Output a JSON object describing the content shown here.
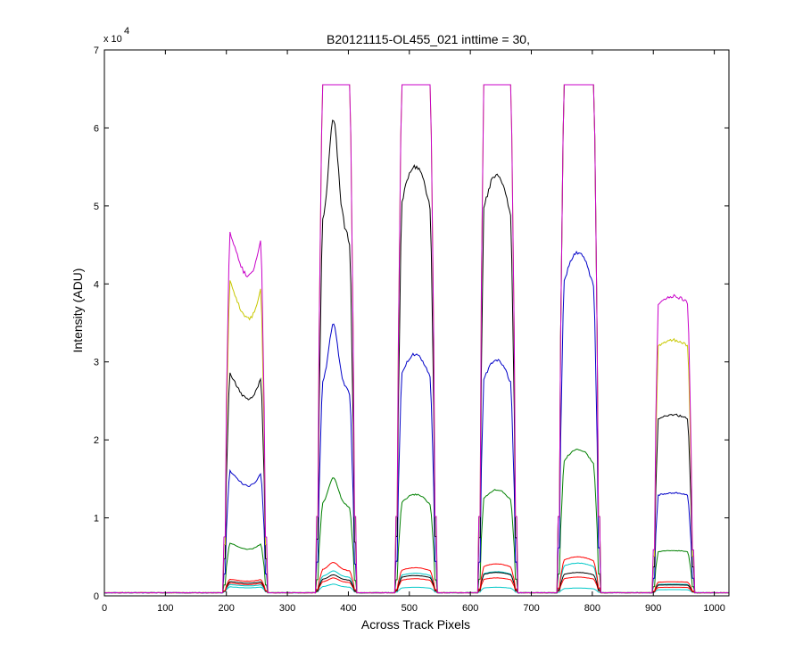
{
  "chart_data": {
    "type": "line",
    "title": "B20121115-OL455_021 inttime = 30,",
    "xlabel": "Across Track Pixels",
    "ylabel": "Intensity (ADU)",
    "y_exponent_base": "x 10",
    "y_exponent_power": "4",
    "xlim": [
      0,
      1024
    ],
    "ylim": [
      0,
      70000
    ],
    "xticks": [
      0,
      100,
      200,
      300,
      400,
      500,
      600,
      700,
      800,
      900,
      1000
    ],
    "yticks": [
      0,
      1,
      2,
      3,
      4,
      5,
      6,
      7
    ],
    "baseline": 400,
    "saturation": 65535,
    "peaks": [
      {
        "start": 200,
        "end": 262,
        "shape": "dip"
      },
      {
        "start": 352,
        "end": 408,
        "shape": "peak"
      },
      {
        "start": 482,
        "end": 540,
        "shape": "round"
      },
      {
        "start": 617,
        "end": 672,
        "shape": "round"
      },
      {
        "start": 748,
        "end": 808,
        "shape": "round"
      },
      {
        "start": 903,
        "end": 962,
        "shape": "flat"
      }
    ],
    "series": [
      {
        "color": "#00c8c8",
        "levels": [
          1200,
          1500,
          1100,
          1100,
          1000,
          800
        ]
      },
      {
        "color": "#00c8c8",
        "levels": [
          1500,
          3200,
          2900,
          3100,
          4200,
          1500
        ]
      },
      {
        "color": "#ff0000",
        "levels": [
          1700,
          2300,
          2200,
          2300,
          2400,
          1100
        ]
      },
      {
        "color": "#000000",
        "levels": [
          1900,
          2700,
          2600,
          3000,
          3000,
          1400
        ]
      },
      {
        "color": "#ff0000",
        "levels": [
          2200,
          4300,
          3600,
          4100,
          5000,
          1800
        ]
      },
      {
        "color": "#008000",
        "levels": [
          7000,
          15200,
          13000,
          13600,
          18800,
          5800
        ]
      },
      {
        "color": "#0000c8",
        "levels": [
          16500,
          34800,
          31000,
          30200,
          44000,
          13200
        ]
      },
      {
        "color": "#000000",
        "levels": [
          29500,
          61000,
          55000,
          54000,
          65535,
          23200
        ]
      },
      {
        "color": "#c8c800",
        "levels": [
          41500,
          65535,
          65535,
          65535,
          65535,
          32800
        ]
      },
      {
        "color": "#c800c8",
        "levels": [
          48000,
          65535,
          65535,
          65535,
          65535,
          38400
        ]
      }
    ]
  }
}
